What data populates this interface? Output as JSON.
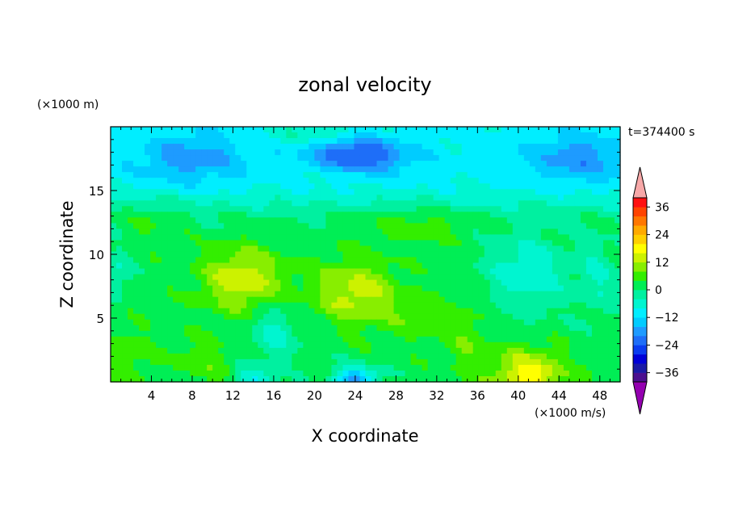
{
  "chart_data": {
    "type": "heatmap",
    "title": "zonal velocity",
    "xlabel": "X coordinate",
    "ylabel": "Z coordinate",
    "x_unit": "(×1000 m/s)",
    "y_unit": "(×1000 m)",
    "time_label": "t=374400 s",
    "xlim": [
      0,
      50
    ],
    "ylim": [
      0,
      20
    ],
    "x_ticks": [
      4,
      8,
      12,
      16,
      20,
      24,
      28,
      32,
      36,
      40,
      44,
      48
    ],
    "y_ticks": [
      5,
      10,
      15
    ],
    "grid": false,
    "colorbar": {
      "levels": [
        -40,
        -36,
        -32,
        -28,
        -24,
        -20,
        -16,
        -12,
        -8,
        -4,
        0,
        4,
        8,
        12,
        16,
        20,
        24,
        28,
        32,
        36,
        40
      ],
      "colors": [
        "#4b0f8f",
        "#1a1aa6",
        "#0000d8",
        "#0a3cf0",
        "#1e6ef8",
        "#1e9bff",
        "#00ccff",
        "#00eeff",
        "#00f5d0",
        "#00f0a0",
        "#00ee55",
        "#33ee00",
        "#88ee00",
        "#ccf200",
        "#ffff00",
        "#ffd000",
        "#ffaa00",
        "#ff7700",
        "#ff4400",
        "#ff1111"
      ],
      "under_color": "#9400b0",
      "over_color": "#f7a8a8",
      "tick_values": [
        36,
        24,
        12,
        0,
        -12,
        -24,
        -36
      ],
      "tick_labels": [
        "36",
        "24",
        "12",
        "0",
        "−12",
        "−24",
        "−36"
      ]
    },
    "features": [
      {
        "x": 24,
        "y": 18.0,
        "sx": 5.0,
        "sy": 1.2,
        "a": -15
      },
      {
        "x": 26,
        "y": 17.0,
        "sx": 4.0,
        "sy": 0.9,
        "a": -4
      },
      {
        "x": 8,
        "y": 17.5,
        "sx": 5.0,
        "sy": 1.8,
        "a": -10
      },
      {
        "x": 46,
        "y": 17.5,
        "sx": 5.0,
        "sy": 1.8,
        "a": -10
      },
      {
        "x": 13,
        "y": 8.0,
        "sx": 4.0,
        "sy": 2.5,
        "a": 13
      },
      {
        "x": 24,
        "y": 7.0,
        "sx": 4.0,
        "sy": 2.5,
        "a": 12
      },
      {
        "x": 30,
        "y": 5.0,
        "sx": 3.0,
        "sy": 2.0,
        "a": 4
      },
      {
        "x": 41,
        "y": 0.5,
        "sx": 3.5,
        "sy": 2.0,
        "a": 16
      },
      {
        "x": 2,
        "y": 2.0,
        "sx": 2.5,
        "sy": 2.5,
        "a": 4
      },
      {
        "x": 9,
        "y": 1.5,
        "sx": 2.5,
        "sy": 2.0,
        "a": 5
      },
      {
        "x": 16,
        "y": 4.0,
        "sx": 2.5,
        "sy": 2.5,
        "a": -7
      },
      {
        "x": 24,
        "y": 0.2,
        "sx": 2.0,
        "sy": 1.0,
        "a": -20
      },
      {
        "x": 14,
        "y": 0.2,
        "sx": 2.0,
        "sy": 0.8,
        "a": -10
      },
      {
        "x": 41,
        "y": 8.5,
        "sx": 4.0,
        "sy": 3.0,
        "a": -9
      },
      {
        "x": 48,
        "y": 8.0,
        "sx": 2.0,
        "sy": 3.0,
        "a": -6
      },
      {
        "x": 0.5,
        "y": 8.5,
        "sx": 1.5,
        "sy": 2.0,
        "a": -6
      },
      {
        "x": 35,
        "y": 3.0,
        "sx": 2.0,
        "sy": 3.0,
        "a": 5
      },
      {
        "x": 20,
        "y": 19.5,
        "sx": 4.0,
        "sy": 1.2,
        "a": 6
      },
      {
        "x": 4,
        "y": 13.0,
        "sx": 3.0,
        "sy": 1.5,
        "a": 4
      },
      {
        "x": 30,
        "y": 12.5,
        "sx": 5.0,
        "sy": 1.5,
        "a": 5
      }
    ],
    "background": {
      "top_value": -9,
      "bottom_value": 2,
      "transition_z": 13.8,
      "transition_width": 1.4
    }
  }
}
